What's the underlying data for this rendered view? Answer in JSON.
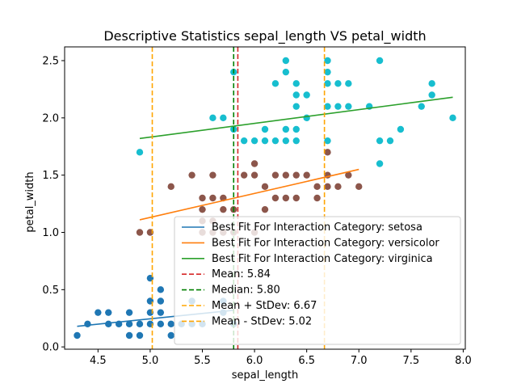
{
  "chart_data": {
    "type": "scatter",
    "title": "Descriptive Statistics sepal_length VS petal_width",
    "xlabel": "sepal_length",
    "ylabel": "petal_width",
    "xlim": [
      4.18,
      8.02
    ],
    "ylim": [
      -0.02,
      2.62
    ],
    "xticks": [
      "4.5",
      "5.0",
      "5.5",
      "6.0",
      "6.5",
      "7.0",
      "7.5",
      "8.0"
    ],
    "xtick_values": [
      4.5,
      5.0,
      5.5,
      6.0,
      6.5,
      7.0,
      7.5,
      8.0
    ],
    "yticks": [
      "0.0",
      "0.5",
      "1.0",
      "1.5",
      "2.0",
      "2.5"
    ],
    "ytick_values": [
      0.0,
      0.5,
      1.0,
      1.5,
      2.0,
      2.5
    ],
    "grid": false,
    "legend_position": "lower-right",
    "series": [
      {
        "name": "setosa",
        "color": "#1f77b4",
        "points": [
          [
            4.3,
            0.1
          ],
          [
            4.4,
            0.2
          ],
          [
            4.5,
            0.3
          ],
          [
            4.6,
            0.2
          ],
          [
            4.6,
            0.3
          ],
          [
            4.7,
            0.2
          ],
          [
            4.8,
            0.1
          ],
          [
            4.8,
            0.2
          ],
          [
            4.8,
            0.3
          ],
          [
            4.9,
            0.1
          ],
          [
            4.9,
            0.2
          ],
          [
            5.0,
            0.2
          ],
          [
            5.0,
            0.3
          ],
          [
            5.0,
            0.4
          ],
          [
            5.0,
            0.6
          ],
          [
            5.1,
            0.2
          ],
          [
            5.1,
            0.3
          ],
          [
            5.1,
            0.4
          ],
          [
            5.1,
            0.5
          ],
          [
            5.2,
            0.1
          ],
          [
            5.2,
            0.2
          ],
          [
            5.3,
            0.2
          ],
          [
            5.4,
            0.2
          ],
          [
            5.4,
            0.4
          ],
          [
            5.5,
            0.2
          ],
          [
            5.7,
            0.3
          ],
          [
            5.7,
            0.4
          ],
          [
            5.8,
            0.2
          ]
        ]
      },
      {
        "name": "versicolor",
        "color": "#8c564b",
        "points": [
          [
            4.9,
            1.0
          ],
          [
            5.0,
            1.0
          ],
          [
            5.2,
            1.4
          ],
          [
            5.5,
            1.0
          ],
          [
            5.5,
            1.1
          ],
          [
            5.5,
            1.2
          ],
          [
            5.5,
            1.3
          ],
          [
            5.6,
            1.0
          ],
          [
            5.6,
            1.1
          ],
          [
            5.6,
            1.3
          ],
          [
            5.6,
            1.5
          ],
          [
            5.4,
            1.5
          ],
          [
            5.7,
            1.0
          ],
          [
            5.7,
            1.2
          ],
          [
            5.7,
            1.3
          ],
          [
            5.8,
            1.0
          ],
          [
            5.8,
            1.2
          ],
          [
            5.9,
            1.5
          ],
          [
            6.0,
            1.0
          ],
          [
            6.0,
            1.5
          ],
          [
            6.0,
            1.6
          ],
          [
            6.1,
            1.2
          ],
          [
            6.1,
            1.4
          ],
          [
            6.2,
            1.3
          ],
          [
            6.2,
            1.5
          ],
          [
            6.3,
            1.3
          ],
          [
            6.3,
            1.5
          ],
          [
            6.4,
            1.3
          ],
          [
            6.4,
            1.5
          ],
          [
            6.5,
            1.5
          ],
          [
            6.6,
            1.3
          ],
          [
            6.6,
            1.4
          ],
          [
            6.7,
            1.4
          ],
          [
            6.7,
            1.5
          ],
          [
            6.8,
            1.4
          ],
          [
            6.9,
            1.5
          ],
          [
            7.0,
            1.4
          ],
          [
            6.7,
            1.7
          ]
        ]
      },
      {
        "name": "virginica",
        "color": "#17becf",
        "points": [
          [
            4.9,
            1.7
          ],
          [
            5.6,
            2.0
          ],
          [
            5.7,
            2.0
          ],
          [
            5.8,
            1.9
          ],
          [
            5.8,
            2.4
          ],
          [
            5.9,
            1.8
          ],
          [
            6.0,
            1.8
          ],
          [
            6.1,
            1.8
          ],
          [
            6.1,
            1.9
          ],
          [
            6.2,
            1.8
          ],
          [
            6.2,
            2.3
          ],
          [
            6.3,
            1.8
          ],
          [
            6.3,
            1.9
          ],
          [
            6.3,
            2.4
          ],
          [
            6.3,
            2.5
          ],
          [
            6.4,
            1.8
          ],
          [
            6.4,
            1.9
          ],
          [
            6.4,
            2.1
          ],
          [
            6.4,
            2.2
          ],
          [
            6.4,
            2.3
          ],
          [
            6.5,
            2.0
          ],
          [
            6.5,
            2.2
          ],
          [
            6.7,
            1.8
          ],
          [
            6.7,
            2.1
          ],
          [
            6.7,
            2.3
          ],
          [
            6.7,
            2.4
          ],
          [
            6.7,
            2.5
          ],
          [
            6.8,
            2.1
          ],
          [
            6.8,
            2.3
          ],
          [
            6.9,
            2.1
          ],
          [
            6.9,
            2.3
          ],
          [
            7.1,
            2.1
          ],
          [
            7.2,
            1.6
          ],
          [
            7.2,
            1.8
          ],
          [
            7.2,
            2.5
          ],
          [
            7.3,
            1.8
          ],
          [
            7.4,
            1.9
          ],
          [
            7.6,
            2.1
          ],
          [
            7.7,
            2.2
          ],
          [
            7.7,
            2.3
          ],
          [
            7.9,
            2.0
          ]
        ]
      }
    ],
    "fit_lines": [
      {
        "label": "Best Fit For Interaction Category: setosa",
        "color": "#1f77b4",
        "x": [
          4.3,
          5.8
        ],
        "y": [
          0.18,
          0.32
        ]
      },
      {
        "label": "Best Fit For Interaction Category: versicolor",
        "color": "#ff7f0e",
        "x": [
          4.9,
          7.0
        ],
        "y": [
          1.11,
          1.55
        ]
      },
      {
        "label": "Best Fit For Interaction Category: virginica",
        "color": "#2ca02c",
        "x": [
          4.9,
          7.9
        ],
        "y": [
          1.82,
          2.18
        ]
      }
    ],
    "vlines": [
      {
        "label": "Mean: 5.84",
        "color": "#d62728",
        "x": 5.84
      },
      {
        "label": "Median: 5.80",
        "color": "#008000",
        "x": 5.8
      },
      {
        "label": "Mean + StDev: 6.67",
        "color": "#ffa500",
        "x": 6.67
      },
      {
        "label": "Mean - StDev: 5.02",
        "color": "#ffa500",
        "x": 5.02
      }
    ]
  }
}
